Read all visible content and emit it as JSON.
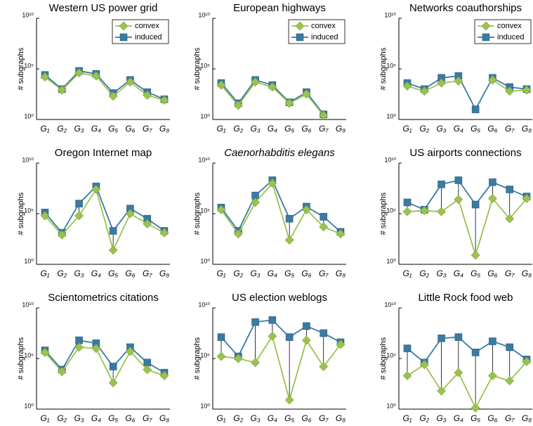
{
  "chart_data": [
    {
      "type": "line",
      "title": "Western US power grid",
      "y_label": "# subgraphs",
      "log_y": true,
      "legend": "upper right",
      "categories": [
        "G₁",
        "G₂",
        "G₃",
        "G₄",
        "G₅",
        "G₆",
        "G₇",
        "G₈"
      ],
      "ylim": [
        1,
        10000000000.0
      ],
      "yticks": [
        {
          "value": 1,
          "label": "10⁰"
        },
        {
          "value": 100000.0,
          "label": "10⁵"
        },
        {
          "value": 10000000000.0,
          "label": "10¹⁰"
        }
      ],
      "series": [
        {
          "name": "convex",
          "color": "#9bc250",
          "values": [
            16000.0,
            800.0,
            40000.0,
            20000.0,
            200.0,
            5000.0,
            250.0,
            80.0
          ]
        },
        {
          "name": "induced",
          "color": "#3a7aa3",
          "values": [
            25000.0,
            1000.0,
            63000.0,
            32000.0,
            400.0,
            8000.0,
            500.0,
            100.0
          ]
        }
      ]
    },
    {
      "type": "line",
      "title": "European highways",
      "y_label": "# subgraphs",
      "log_y": true,
      "legend": "upper right",
      "categories": [
        "G₁",
        "G₂",
        "G₃",
        "G₄",
        "G₅",
        "G₆",
        "G₇",
        "G₈"
      ],
      "ylim": [
        1,
        10000000000.0
      ],
      "yticks": [
        {
          "value": 1,
          "label": "10⁰"
        },
        {
          "value": 100000.0,
          "label": "10⁵"
        },
        {
          "value": 10000000000.0,
          "label": "10¹⁰"
        }
      ],
      "series": [
        {
          "name": "convex",
          "color": "#9bc250",
          "values": [
            2500.0,
            25,
            5000.0,
            1600.0,
            40,
            320.0,
            2.5,
            null
          ]
        },
        {
          "name": "induced",
          "color": "#3a7aa3",
          "values": [
            4000.0,
            40,
            8000.0,
            2500.0,
            50,
            500.0,
            3.2,
            null
          ]
        }
      ]
    },
    {
      "type": "line",
      "title": "Networks coauthorships",
      "y_label": "# subgraphs",
      "log_y": true,
      "legend": "upper right",
      "categories": [
        "G₁",
        "G₂",
        "G₃",
        "G₄",
        "G₅",
        "G₆",
        "G₇",
        "G₈"
      ],
      "ylim": [
        1,
        10000000000.0
      ],
      "yticks": [
        {
          "value": 1,
          "label": "10⁰"
        },
        {
          "value": 100000.0,
          "label": "10⁵"
        },
        {
          "value": 10000000000.0,
          "label": "10¹⁰"
        }
      ],
      "series": [
        {
          "name": "convex",
          "color": "#9bc250",
          "values": [
            2000.0,
            630.0,
            4000.0,
            6300.0,
            null,
            8000.0,
            630.0,
            800.0
          ]
        },
        {
          "name": "induced",
          "color": "#3a7aa3",
          "values": [
            4000.0,
            1000.0,
            13000.0,
            20000.0,
            10,
            13000.0,
            1600.0,
            1000.0
          ]
        }
      ]
    },
    {
      "type": "line",
      "title": "Oregon Internet map",
      "y_label": "# subgraphs",
      "log_y": true,
      "categories": [
        "G₁",
        "G₂",
        "G₃",
        "G₄",
        "G₅",
        "G₆",
        "G₇",
        "G₈"
      ],
      "ylim": [
        1,
        10000000000.0
      ],
      "yticks": [
        {
          "value": 1,
          "label": "10⁰"
        },
        {
          "value": 100000.0,
          "label": "10⁵"
        },
        {
          "value": 10000000000.0,
          "label": "10¹⁰"
        }
      ],
      "series": [
        {
          "name": "convex",
          "color": "#9bc250",
          "values": [
            63000.0,
            800.0,
            63000.0,
            25000000.0,
            25,
            100000.0,
            10000.0,
            1300.0
          ]
        },
        {
          "name": "induced",
          "color": "#3a7aa3",
          "values": [
            130000.0,
            1300.0,
            1000000.0,
            50000000.0,
            2000.0,
            320000.0,
            32000.0,
            2000.0
          ]
        }
      ]
    },
    {
      "type": "line",
      "title": "Caenorhabditis elegans",
      "title_italic": true,
      "y_label": "# subgraphs",
      "log_y": true,
      "categories": [
        "G₁",
        "G₂",
        "G₃",
        "G₄",
        "G₅",
        "G₆",
        "G₇",
        "G₈"
      ],
      "ylim": [
        1,
        10000000000.0
      ],
      "yticks": [
        {
          "value": 1,
          "label": "10⁰"
        },
        {
          "value": 100000.0,
          "label": "10⁵"
        },
        {
          "value": 10000000000.0,
          "label": "10¹⁰"
        }
      ],
      "series": [
        {
          "name": "convex",
          "color": "#9bc250",
          "values": [
            250000.0,
            1000.0,
            1300000.0,
            100000000.0,
            250.0,
            250000.0,
            5000.0,
            1000.0
          ]
        },
        {
          "name": "induced",
          "color": "#3a7aa3",
          "values": [
            400000.0,
            2000.0,
            6300000.0,
            200000000.0,
            32000.0,
            500000.0,
            50000.0,
            1600.0
          ]
        }
      ]
    },
    {
      "type": "line",
      "title": "US airports connections",
      "y_label": "# subgraphs",
      "log_y": true,
      "categories": [
        "G₁",
        "G₂",
        "G₃",
        "G₄",
        "G₅",
        "G₆",
        "G₇",
        "G₈"
      ],
      "ylim": [
        1,
        10000000000.0
      ],
      "yticks": [
        {
          "value": 1,
          "label": "10⁰"
        },
        {
          "value": 100000.0,
          "label": "10⁵"
        },
        {
          "value": 10000000000.0,
          "label": "10¹⁰"
        }
      ],
      "series": [
        {
          "name": "convex",
          "color": "#9bc250",
          "values": [
            160000.0,
            200000.0,
            160000.0,
            2500000.0,
            8,
            3200000.0,
            32000.0,
            3200000.0
          ]
        },
        {
          "name": "induced",
          "color": "#3a7aa3",
          "values": [
            1300000.0,
            250000.0,
            80000000.0,
            200000000.0,
            800000.0,
            130000000.0,
            25000000.0,
            5000000.0
          ]
        }
      ]
    },
    {
      "type": "line",
      "title": "Scientometrics citations",
      "y_label": "# subgraphs",
      "log_y": true,
      "categories": [
        "G₁",
        "G₂",
        "G₃",
        "G₄",
        "G₅",
        "G₆",
        "G₇",
        "G₈"
      ],
      "ylim": [
        1,
        10000000000.0
      ],
      "yticks": [
        {
          "value": 1,
          "label": "10⁰"
        },
        {
          "value": 100000.0,
          "label": "10⁵"
        },
        {
          "value": 10000000000.0,
          "label": "10¹⁰"
        }
      ],
      "series": [
        {
          "name": "convex",
          "color": "#9bc250",
          "values": [
            400000.0,
            5000.0,
            1300000.0,
            1000000.0,
            400.0,
            500000.0,
            8000.0,
            2000.0
          ]
        },
        {
          "name": "induced",
          "color": "#3a7aa3",
          "values": [
            630000.0,
            8000.0,
            6300000.0,
            3200000.0,
            16000.0,
            1300000.0,
            40000.0,
            4000.0
          ]
        }
      ]
    },
    {
      "type": "line",
      "title": "US election weblogs",
      "y_label": "# subgraphs",
      "log_y": true,
      "categories": [
        "G₁",
        "G₂",
        "G₃",
        "G₄",
        "G₅",
        "G₆",
        "G₇",
        "G₈"
      ],
      "ylim": [
        1,
        10000000000.0
      ],
      "yticks": [
        {
          "value": 1,
          "label": "10⁰"
        },
        {
          "value": 100000.0,
          "label": "10⁵"
        },
        {
          "value": 10000000000.0,
          "label": "10¹⁰"
        }
      ],
      "series": [
        {
          "name": "convex",
          "color": "#9bc250",
          "values": [
            160000.0,
            100000.0,
            40000.0,
            16000000.0,
            8,
            6300000.0,
            16000.0,
            2500000.0
          ]
        },
        {
          "name": "induced",
          "color": "#3a7aa3",
          "values": [
            13000000.0,
            160000.0,
            400000000.0,
            630000000.0,
            13000000.0,
            160000000.0,
            32000000.0,
            4000000.0
          ]
        }
      ]
    },
    {
      "type": "line",
      "title": "Little Rock food web",
      "y_label": "# subgraphs",
      "log_y": true,
      "categories": [
        "G₁",
        "G₂",
        "G₃",
        "G₄",
        "G₅",
        "G₆",
        "G₇",
        "G₈"
      ],
      "ylim": [
        1,
        10000000000.0
      ],
      "yticks": [
        {
          "value": 1,
          "label": "10⁰"
        },
        {
          "value": 100000.0,
          "label": "10⁵"
        },
        {
          "value": 10000000000.0,
          "label": "10¹⁰"
        }
      ],
      "series": [
        {
          "name": "convex",
          "color": "#9bc250",
          "values": [
            2000.0,
            25000.0,
            63,
            4000.0,
            1.3,
            2000.0,
            630.0,
            50000.0
          ]
        },
        {
          "name": "induced",
          "color": "#3a7aa3",
          "values": [
            1000000.0,
            40000.0,
            10000000.0,
            13000000.0,
            400000.0,
            5000000.0,
            1300000.0,
            80000.0
          ]
        }
      ]
    }
  ]
}
